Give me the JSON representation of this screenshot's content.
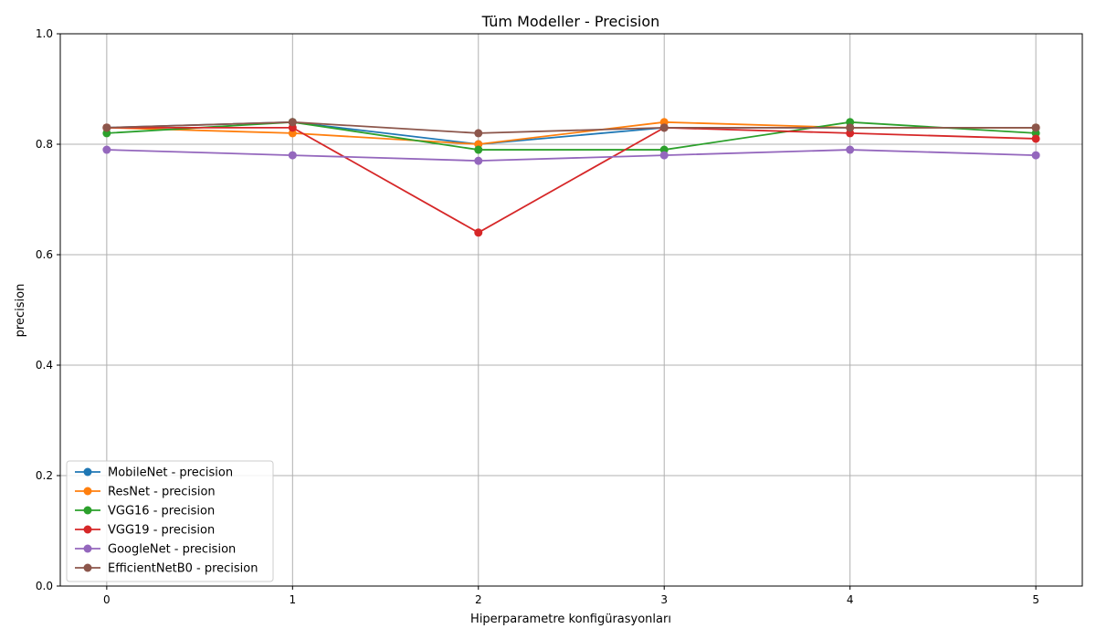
{
  "chart_data": {
    "type": "line",
    "title": "Tüm Modeller - Precision",
    "xlabel": "Hiperparametre konfigürasyonları",
    "ylabel": "precision",
    "x": [
      0,
      1,
      2,
      3,
      4,
      5
    ],
    "xticks": [
      "0",
      "1",
      "2",
      "3",
      "4",
      "5"
    ],
    "yticks": [
      "0.0",
      "0.2",
      "0.4",
      "0.6",
      "0.8",
      "1.0"
    ],
    "ylim": [
      0,
      1
    ],
    "grid": true,
    "legend_position": "lower-left",
    "series": [
      {
        "name": "MobileNet - precision",
        "color": "#1f77b4",
        "values": [
          0.83,
          0.84,
          0.8,
          0.83,
          0.83,
          0.83
        ]
      },
      {
        "name": "ResNet - precision",
        "color": "#ff7f0e",
        "values": [
          0.83,
          0.82,
          0.8,
          0.84,
          0.83,
          0.83
        ]
      },
      {
        "name": "VGG16 - precision",
        "color": "#2ca02c",
        "values": [
          0.82,
          0.84,
          0.79,
          0.79,
          0.84,
          0.82
        ]
      },
      {
        "name": "VGG19 - precision",
        "color": "#d62728",
        "values": [
          0.83,
          0.83,
          0.64,
          0.83,
          0.82,
          0.81
        ]
      },
      {
        "name": "GoogleNet - precision",
        "color": "#9467bd",
        "values": [
          0.79,
          0.78,
          0.77,
          0.78,
          0.79,
          0.78
        ]
      },
      {
        "name": "EfficientNetB0 - precision",
        "color": "#8c564b",
        "values": [
          0.83,
          0.84,
          0.82,
          0.83,
          0.83,
          0.83
        ]
      }
    ]
  }
}
